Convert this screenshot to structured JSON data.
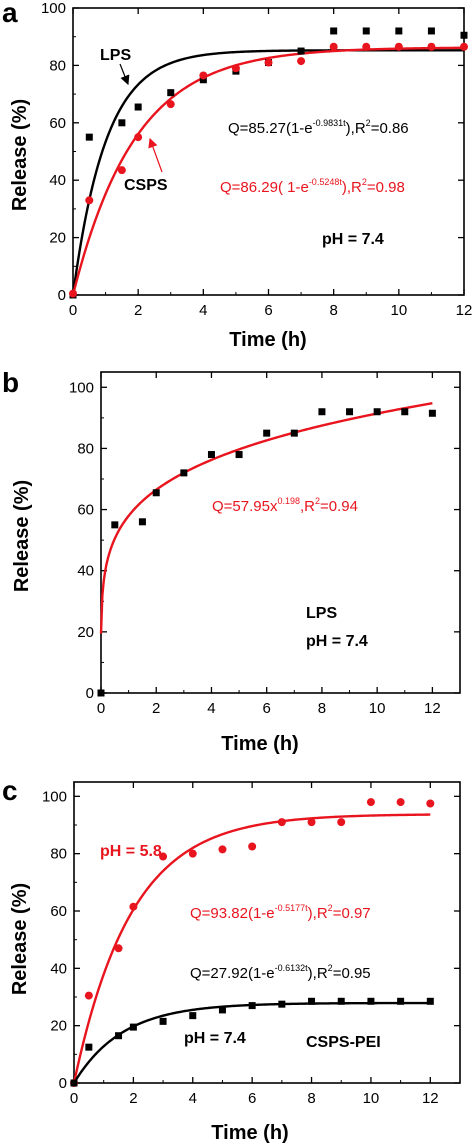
{
  "figure": {
    "panels": [
      "a",
      "b",
      "c"
    ]
  },
  "chart_data": [
    {
      "type": "scatter",
      "panel_label": "a",
      "xlabel": "Time (h)",
      "ylabel": "Release (%)",
      "xlim": [
        0,
        12
      ],
      "ylim": [
        0,
        100
      ],
      "xticks": [
        0,
        2,
        4,
        6,
        8,
        10,
        12
      ],
      "yticks": [
        0,
        20,
        40,
        60,
        80,
        100
      ],
      "grid": false,
      "series": [
        {
          "name": "LPS",
          "color": "#000000",
          "marker": "square",
          "points": [
            [
              0,
              0
            ],
            [
              0.5,
              55
            ],
            [
              1.5,
              60
            ],
            [
              2,
              65.5
            ],
            [
              3,
              70.5
            ],
            [
              4,
              75
            ],
            [
              5,
              78
            ],
            [
              6,
              81
            ],
            [
              7,
              85
            ],
            [
              8,
              92
            ],
            [
              9,
              92
            ],
            [
              10,
              92
            ],
            [
              11,
              92
            ],
            [
              12,
              90.5
            ]
          ],
          "fit": {
            "type": "exp_saturation",
            "Qmax": 85.27,
            "k": 0.9831
          }
        },
        {
          "name": "CSPS",
          "color": "#e8141e",
          "marker": "circle",
          "points": [
            [
              0,
              0.5
            ],
            [
              0.5,
              33
            ],
            [
              1.5,
              43.5
            ],
            [
              2,
              55
            ],
            [
              3,
              66.5
            ],
            [
              4,
              76.5
            ],
            [
              5,
              79
            ],
            [
              6,
              81
            ],
            [
              7,
              81.5
            ],
            [
              8,
              86.5
            ],
            [
              9,
              86.5
            ],
            [
              10,
              86.5
            ],
            [
              11,
              86.5
            ],
            [
              12,
              86.5
            ]
          ],
          "fit": {
            "type": "exp_saturation",
            "Qmax": 86.29,
            "k": 0.5248
          }
        }
      ],
      "annotations": {
        "lps_label": "LPS",
        "csps_label": "CSPS",
        "eq_black_a": "Q=85.27(1-e",
        "eq_black_exp": "-0.9831t",
        "eq_black_b": "),R",
        "eq_black_r2sup": "2",
        "eq_black_c": "=0.86",
        "eq_red_a": "Q=86.29( 1-e",
        "eq_red_exp": "-0.5248t",
        "eq_red_b": "),R",
        "eq_red_r2sup": "2",
        "eq_red_c": "=0.98",
        "ph_text": "pH = 7.4"
      }
    },
    {
      "type": "scatter",
      "panel_label": "b",
      "xlabel": "Time (h)",
      "ylabel": "Release (%)",
      "xlim": [
        0,
        13
      ],
      "ylim": [
        0,
        105
      ],
      "xticks": [
        0,
        2,
        4,
        6,
        8,
        10,
        12
      ],
      "yticks": [
        0,
        20,
        40,
        60,
        80,
        100
      ],
      "grid": false,
      "series": [
        {
          "name": "LPS",
          "color": "#000000",
          "marker": "square",
          "points": [
            [
              0,
              0
            ],
            [
              0.5,
              55
            ],
            [
              1.5,
              56
            ],
            [
              2,
              65.5
            ],
            [
              3,
              72
            ],
            [
              4,
              78
            ],
            [
              5,
              78
            ],
            [
              6,
              85
            ],
            [
              7,
              85
            ],
            [
              8,
              92
            ],
            [
              9,
              92
            ],
            [
              10,
              92
            ],
            [
              11,
              92
            ],
            [
              12,
              91.5
            ]
          ],
          "fit": {
            "type": "power",
            "a": 57.95,
            "b": 0.198,
            "color": "#e8141e"
          }
        }
      ],
      "annotations": {
        "eq_a": "Q=57.95x",
        "eq_exp": "0.198",
        "eq_b": ",R",
        "eq_r2sup": "2",
        "eq_c": "=0.94",
        "lps_label": "LPS",
        "ph_text": "pH = 7.4"
      }
    },
    {
      "type": "scatter",
      "panel_label": "c",
      "xlabel": "Time (h)",
      "ylabel": "Release (%)",
      "xlim": [
        0,
        13
      ],
      "ylim": [
        0,
        105
      ],
      "xticks": [
        0,
        2,
        4,
        6,
        8,
        10,
        12
      ],
      "yticks": [
        0,
        20,
        40,
        60,
        80,
        100
      ],
      "grid": false,
      "series": [
        {
          "name": "pH = 5.8",
          "color": "#e8141e",
          "marker": "circle",
          "points": [
            [
              0,
              0
            ],
            [
              0.5,
              30.5
            ],
            [
              1.5,
              47
            ],
            [
              2,
              61.5
            ],
            [
              3,
              79
            ],
            [
              4,
              80
            ],
            [
              5,
              81.5
            ],
            [
              6,
              82.5
            ],
            [
              7,
              91
            ],
            [
              8,
              91
            ],
            [
              9,
              91
            ],
            [
              10,
              98
            ],
            [
              11,
              98
            ],
            [
              12,
              97.5
            ]
          ],
          "fit": {
            "type": "exp_saturation",
            "Qmax": 93.82,
            "k": 0.5177
          }
        },
        {
          "name": "pH = 7.4",
          "color": "#000000",
          "marker": "square",
          "points": [
            [
              0,
              0
            ],
            [
              0.5,
              12.5
            ],
            [
              1.5,
              16.5
            ],
            [
              2,
              19.5
            ],
            [
              3,
              21.5
            ],
            [
              4,
              23.5
            ],
            [
              5,
              25.5
            ],
            [
              6,
              27
            ],
            [
              7,
              27.5
            ],
            [
              8,
              28.5
            ],
            [
              9,
              28.5
            ],
            [
              10,
              28.5
            ],
            [
              11,
              28.5
            ],
            [
              12,
              28.5
            ]
          ],
          "fit": {
            "type": "exp_saturation",
            "Qmax": 27.92,
            "k": 0.6132
          }
        }
      ],
      "annotations": {
        "ph58_text": "pH = 5.8",
        "eq_red_a": "Q=93.82(1-e",
        "eq_red_exp": "-0.5177t",
        "eq_red_b": "),R",
        "eq_red_r2sup": "2",
        "eq_red_c": "=0.97",
        "eq_black_a": "Q=27.92(1-e",
        "eq_black_exp": "-0.6132t",
        "eq_black_b": "),R",
        "eq_black_r2sup": "2",
        "eq_black_c": "=0.95",
        "ph74_text": "pH = 7.4",
        "sample_label": "CSPS-PEI"
      }
    }
  ]
}
